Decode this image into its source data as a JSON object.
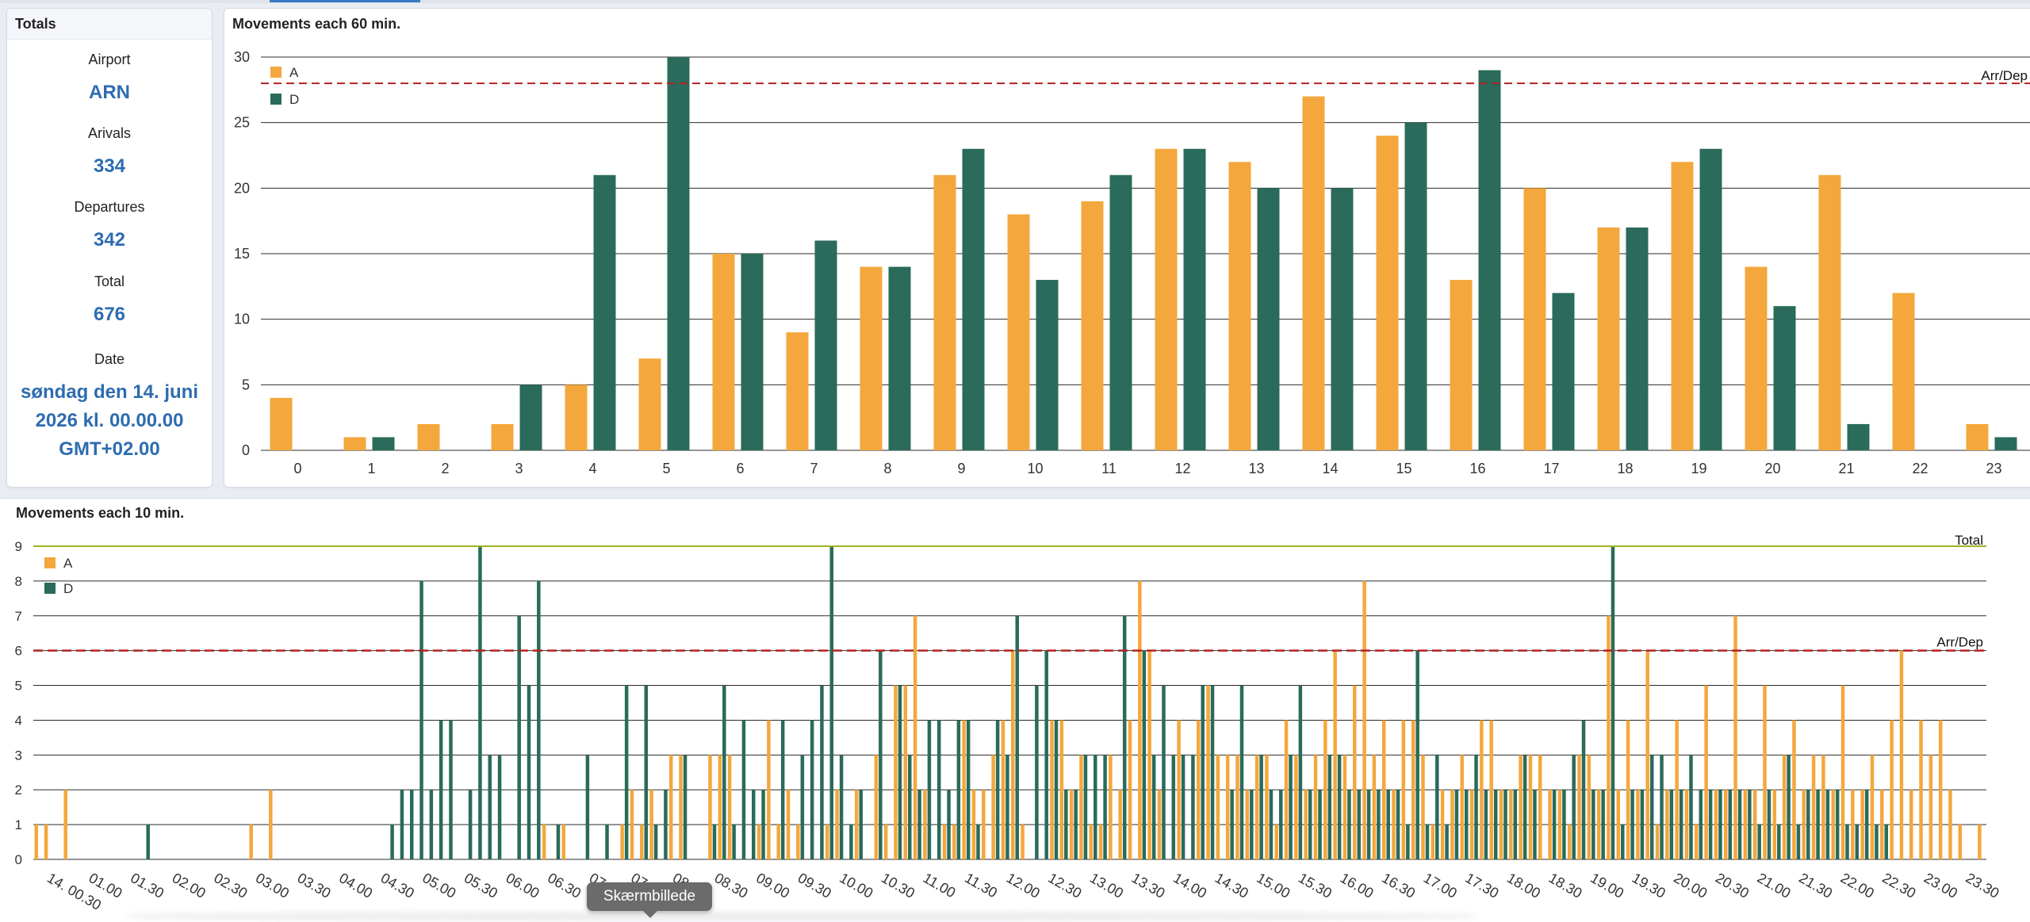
{
  "colors": {
    "arrivals": "#f4a73c",
    "departures": "#2a6b5b",
    "link": "#2e6cb0",
    "capacity": "#b22222",
    "total": "#9bb51b"
  },
  "totals": {
    "title": "Totals",
    "airport_label": "Airport",
    "airport_value": "ARN",
    "arrivals_label": "Arivals",
    "arrivals_value": "334",
    "departures_label": "Departures",
    "departures_value": "342",
    "total_label": "Total",
    "total_value": "676",
    "date_label": "Date",
    "date_line1": "søndag den 14. juni",
    "date_line2": "2026 kl. 00.00.00",
    "date_line3": "GMT+02.00"
  },
  "tooltip": "Skærmbillede",
  "chart_data": [
    {
      "type": "bar",
      "title": "Movements each 60 min.",
      "categories": [
        "0",
        "1",
        "2",
        "3",
        "4",
        "5",
        "6",
        "7",
        "8",
        "9",
        "10",
        "11",
        "12",
        "13",
        "14",
        "15",
        "16",
        "17",
        "18",
        "19",
        "20",
        "21",
        "22",
        "23"
      ],
      "series": [
        {
          "name": "A",
          "values": [
            4,
            1,
            2,
            2,
            5,
            7,
            15,
            9,
            14,
            21,
            18,
            19,
            23,
            22,
            27,
            24,
            13,
            20,
            17,
            22,
            14,
            21,
            12,
            2
          ]
        },
        {
          "name": "D",
          "values": [
            0,
            1,
            0,
            5,
            21,
            30,
            15,
            16,
            14,
            23,
            13,
            21,
            23,
            20,
            20,
            25,
            29,
            12,
            17,
            23,
            11,
            2,
            0,
            1
          ]
        }
      ],
      "ylim": [
        0,
        30
      ],
      "yticks": [
        0,
        5,
        10,
        15,
        20,
        25,
        30
      ],
      "reference_line": {
        "label": "Arr/Dep",
        "value": 28
      },
      "legend": "top-left",
      "grid": true
    },
    {
      "type": "bar",
      "title": "Movements each 10 min.",
      "x_tick_labels": [
        "14. 00.30",
        "01.00",
        "01.30",
        "02.00",
        "02.30",
        "03.00",
        "03.30",
        "04.00",
        "04.30",
        "05.00",
        "05.30",
        "06.00",
        "06.30",
        "07.00",
        "07.30",
        "08.00",
        "08.30",
        "09.00",
        "09.30",
        "10.00",
        "10.30",
        "11.00",
        "11.30",
        "12.00",
        "12.30",
        "13.00",
        "13.30",
        "14.00",
        "14.30",
        "15.00",
        "15.30",
        "16.00",
        "16.30",
        "17.00",
        "17.30",
        "18.00",
        "18.30",
        "19.00",
        "19.30",
        "20.00",
        "20.30",
        "21.00",
        "21.30",
        "22.00",
        "22.30",
        "23.00",
        "23.30"
      ],
      "series": [
        {
          "name": "A",
          "values": [
            1,
            1,
            0,
            2,
            0,
            0,
            0,
            0,
            0,
            0,
            0,
            0,
            0,
            0,
            0,
            0,
            0,
            0,
            0,
            0,
            0,
            0,
            1,
            0,
            2,
            0,
            0,
            0,
            0,
            0,
            0,
            0,
            0,
            0,
            0,
            0,
            0,
            0,
            0,
            0,
            0,
            0,
            0,
            0,
            0,
            0,
            0,
            0,
            0,
            0,
            0,
            0,
            1,
            0,
            1,
            0,
            0,
            0,
            0,
            0,
            1,
            2,
            1,
            2,
            0,
            3,
            3,
            0,
            0,
            3,
            3,
            3,
            0,
            0,
            1,
            4,
            1,
            2,
            1,
            0,
            0,
            1,
            2,
            0,
            2,
            0,
            3,
            1,
            5,
            5,
            7,
            2,
            0,
            1,
            1,
            4,
            2,
            2,
            3,
            4,
            6,
            1,
            0,
            0,
            4,
            4,
            2,
            3,
            1,
            1,
            3,
            2,
            4,
            8,
            6,
            2,
            0,
            4,
            0,
            4,
            5,
            3,
            3,
            3,
            2,
            3,
            3,
            1,
            4,
            3,
            2,
            3,
            4,
            6,
            3,
            5,
            8,
            3,
            4,
            2,
            4,
            4,
            3,
            1,
            2,
            2,
            3,
            2,
            4,
            4,
            2,
            2,
            3,
            3,
            3,
            2,
            2,
            1,
            3,
            3,
            2,
            7,
            2,
            4,
            2,
            6,
            1,
            2,
            4,
            2,
            1,
            5,
            2,
            2,
            7,
            2,
            2,
            5,
            2,
            3,
            4,
            2,
            3,
            3,
            2,
            5,
            2,
            2,
            3,
            2,
            4,
            6,
            2,
            4,
            3,
            4,
            2,
            1,
            0,
            1
          ]
        },
        {
          "name": "D",
          "values": [
            0,
            0,
            0,
            0,
            0,
            0,
            0,
            0,
            0,
            0,
            0,
            1,
            0,
            0,
            0,
            0,
            0,
            0,
            0,
            0,
            0,
            0,
            0,
            0,
            0,
            0,
            0,
            0,
            0,
            0,
            0,
            0,
            0,
            0,
            0,
            0,
            1,
            2,
            2,
            8,
            2,
            4,
            4,
            0,
            2,
            9,
            3,
            3,
            0,
            7,
            5,
            8,
            0,
            1,
            0,
            0,
            3,
            0,
            1,
            0,
            5,
            0,
            5,
            1,
            2,
            0,
            3,
            0,
            0,
            1,
            5,
            1,
            4,
            2,
            2,
            0,
            4,
            0,
            3,
            4,
            5,
            9,
            3,
            1,
            2,
            0,
            6,
            0,
            5,
            3,
            2,
            4,
            4,
            2,
            4,
            4,
            1,
            0,
            4,
            3,
            7,
            0,
            5,
            6,
            4,
            2,
            2,
            3,
            3,
            3,
            0,
            7,
            0,
            6,
            3,
            5,
            3,
            3,
            3,
            5,
            5,
            0,
            2,
            5,
            2,
            3,
            2,
            2,
            3,
            5,
            2,
            2,
            3,
            3,
            2,
            2,
            2,
            2,
            2,
            2,
            1,
            6,
            1,
            3,
            1,
            2,
            2,
            3,
            2,
            2,
            2,
            2,
            3,
            2,
            0,
            2,
            2,
            3,
            4,
            2,
            2,
            9,
            1,
            2,
            2,
            3,
            3,
            2,
            2,
            3,
            2,
            2,
            2,
            2,
            2,
            2,
            1,
            2,
            1,
            3,
            1,
            2,
            2,
            2,
            2,
            1,
            1,
            2,
            1,
            1
          ]
        }
      ],
      "ylim": [
        0,
        9
      ],
      "yticks": [
        0,
        1,
        2,
        3,
        4,
        5,
        6,
        7,
        8,
        9
      ],
      "reference_lines": [
        {
          "label": "Arr/Dep",
          "value": 6
        },
        {
          "label": "Total",
          "value": 9
        }
      ],
      "legend": "top-left",
      "grid": true
    }
  ]
}
